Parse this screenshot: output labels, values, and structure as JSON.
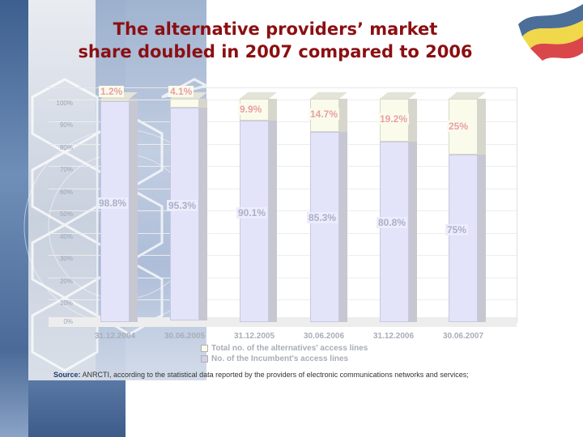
{
  "title": {
    "line1": "The alternative providers’ market",
    "line2": "share doubled in 2007 compared to 2006"
  },
  "colors": {
    "title": "#8b0f12",
    "alternatives_series": "#fbfbeb",
    "incumbent_series": "#e3e3fa",
    "alt_label": "#e8a0a6",
    "inc_label": "#a9b1c9"
  },
  "yaxis": {
    "ticks": [
      "100%",
      "90%",
      "80%",
      "70%",
      "60%",
      "50%",
      "40%",
      "30%",
      "20%",
      "10%",
      "0%"
    ]
  },
  "chart_data": {
    "type": "bar",
    "stacked": true,
    "percent_stacked": true,
    "title": "The alternative providers’ market share doubled in 2007 compared to 2006",
    "xlabel": "",
    "ylabel": "",
    "ylim": [
      0,
      100
    ],
    "categories": [
      "31.12.2004",
      "30.06.2005",
      "31.12.2005",
      "30.06.2006",
      "31.12.2006",
      "30.06.2007"
    ],
    "series": [
      {
        "name": "No. of the Incumbent's access lines",
        "values": [
          98.8,
          95.3,
          90.1,
          85.3,
          80.8,
          75
        ],
        "labels": [
          "98.8%",
          "95.3%",
          "90.1%",
          "85.3%",
          "80.8%",
          "75%"
        ]
      },
      {
        "name": "Total no. of the alternatives' access lines",
        "values": [
          1.2,
          4.1,
          9.9,
          14.7,
          19.2,
          25
        ],
        "labels": [
          "1.2%",
          "4.1%",
          "9.9%",
          "14.7%",
          "19.2%",
          "25%"
        ]
      }
    ],
    "legend_position": "bottom",
    "grid": true
  },
  "legend": {
    "alternatives": "Total no. of the alternatives' access lines",
    "incumbent": "No. of the Incumbent's access lines"
  },
  "source": {
    "label": "Source:",
    "text": " ANRCTI, according to the statistical data reported by the providers of electronic communications networks and services;"
  }
}
